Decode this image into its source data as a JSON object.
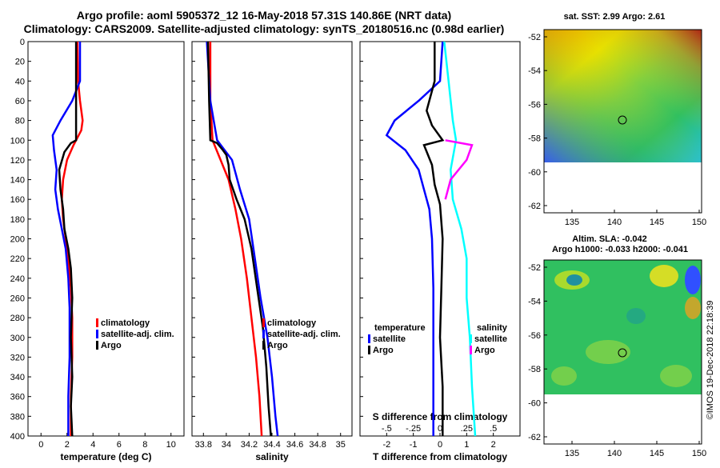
{
  "title": {
    "line1": "Argo profile: aoml 5905372_12 16-May-2018 57.31S 140.86E (NRT data)",
    "line2": "Climatology: CARS2009. Satellite-adjusted climatology: synTS_20180516.nc (0.98d earlier)"
  },
  "colors": {
    "climatology": "#ff0000",
    "satellite": "#0000ff",
    "argo": "#000000",
    "sat_salinity": "#00ffff",
    "argo_salinity": "#ff00ff"
  },
  "chart_data": [
    {
      "type": "line",
      "name": "temperature",
      "xlabel": "temperature (deg C)",
      "ylabel": "",
      "xlim": [
        -1,
        11
      ],
      "ylim": [
        0,
        400
      ],
      "xticks": [
        0,
        2,
        4,
        6,
        8,
        10
      ],
      "yticks": [
        0,
        20,
        40,
        60,
        80,
        100,
        120,
        140,
        160,
        180,
        200,
        220,
        240,
        260,
        280,
        300,
        320,
        340,
        360,
        380,
        400
      ],
      "legend": [
        "climatology",
        "satellite-adj. clim.",
        "Argo"
      ],
      "series": [
        {
          "name": "climatology",
          "color": "#ff0000",
          "points": [
            [
              2.8,
              0
            ],
            [
              2.85,
              40
            ],
            [
              3.0,
              60
            ],
            [
              3.2,
              80
            ],
            [
              3.1,
              90
            ],
            [
              2.5,
              105
            ],
            [
              2.0,
              120
            ],
            [
              1.7,
              140
            ],
            [
              1.6,
              160
            ],
            [
              1.7,
              180
            ],
            [
              1.9,
              200
            ],
            [
              2.1,
              220
            ],
            [
              2.3,
              250
            ],
            [
              2.4,
              280
            ],
            [
              2.4,
              320
            ],
            [
              2.3,
              360
            ],
            [
              2.3,
              400
            ]
          ]
        },
        {
          "name": "satellite-adj. clim.",
          "color": "#0000ff",
          "points": [
            [
              3.0,
              0
            ],
            [
              3.0,
              40
            ],
            [
              2.4,
              60
            ],
            [
              1.5,
              80
            ],
            [
              0.9,
              95
            ],
            [
              1.0,
              110
            ],
            [
              1.2,
              130
            ],
            [
              1.1,
              150
            ],
            [
              1.3,
              170
            ],
            [
              1.6,
              190
            ],
            [
              1.9,
              210
            ],
            [
              2.1,
              240
            ],
            [
              2.2,
              270
            ],
            [
              2.2,
              320
            ],
            [
              2.1,
              360
            ],
            [
              2.1,
              400
            ]
          ]
        },
        {
          "name": "Argo",
          "color": "#000000",
          "points": [
            [
              2.7,
              0
            ],
            [
              2.7,
              100
            ],
            [
              2.3,
              103
            ],
            [
              1.8,
              112
            ],
            [
              1.4,
              130
            ],
            [
              1.5,
              150
            ],
            [
              1.7,
              170
            ],
            [
              1.8,
              190
            ],
            [
              2.1,
              210
            ],
            [
              2.3,
              230
            ],
            [
              2.4,
              260
            ],
            [
              2.3,
              300
            ],
            [
              2.4,
              340
            ],
            [
              2.3,
              370
            ],
            [
              2.4,
              400
            ]
          ]
        }
      ]
    },
    {
      "type": "line",
      "name": "salinity",
      "xlabel": "salinity",
      "ylabel": "",
      "xlim": [
        33.7,
        35.1
      ],
      "ylim": [
        0,
        400
      ],
      "xticks": [
        33.8,
        34,
        34.2,
        34.4,
        34.6,
        34.8,
        35
      ],
      "legend": [
        "climatology",
        "satellite-adj. clim.",
        "Argo"
      ],
      "series": [
        {
          "name": "climatology",
          "color": "#ff0000",
          "points": [
            [
              33.86,
              0
            ],
            [
              33.86,
              60
            ],
            [
              33.88,
              100
            ],
            [
              33.95,
              120
            ],
            [
              34.02,
              140
            ],
            [
              34.08,
              170
            ],
            [
              34.13,
              200
            ],
            [
              34.18,
              240
            ],
            [
              34.22,
              280
            ],
            [
              34.26,
              320
            ],
            [
              34.29,
              360
            ],
            [
              34.31,
              400
            ]
          ]
        },
        {
          "name": "satellite-adj. clim.",
          "color": "#0000ff",
          "points": [
            [
              33.83,
              0
            ],
            [
              33.86,
              60
            ],
            [
              33.89,
              80
            ],
            [
              33.92,
              100
            ],
            [
              34.05,
              120
            ],
            [
              34.12,
              150
            ],
            [
              34.2,
              180
            ],
            [
              34.25,
              220
            ],
            [
              34.3,
              260
            ],
            [
              34.36,
              300
            ],
            [
              34.4,
              340
            ],
            [
              34.43,
              380
            ],
            [
              34.45,
              400
            ]
          ]
        },
        {
          "name": "Argo",
          "color": "#000000",
          "points": [
            [
              33.84,
              0
            ],
            [
              33.85,
              60
            ],
            [
              33.86,
              100
            ],
            [
              33.92,
              103
            ],
            [
              33.97,
              110
            ],
            [
              34.0,
              115
            ],
            [
              34.02,
              125
            ],
            [
              34.03,
              140
            ],
            [
              34.09,
              160
            ],
            [
              34.16,
              180
            ],
            [
              34.22,
              210
            ],
            [
              34.27,
              250
            ],
            [
              34.32,
              290
            ],
            [
              34.35,
              330
            ],
            [
              34.37,
              370
            ],
            [
              34.39,
              400
            ]
          ]
        }
      ]
    },
    {
      "type": "line",
      "name": "difference",
      "xlabel": "T difference from climatology",
      "xlabel_top": "S difference from climatology",
      "ylabel": "",
      "xlim": [
        -3,
        3
      ],
      "ylim": [
        0,
        400
      ],
      "xticks": [
        -2,
        -1,
        0,
        1,
        2
      ],
      "xticks_s": [
        -0.5,
        -0.25,
        0,
        0.25,
        0.5
      ],
      "legend_temperature": {
        "title": "temperature",
        "items": [
          "satellite",
          "Argo"
        ]
      },
      "legend_salinity": {
        "title": "salinity",
        "items": [
          "satellite",
          "Argo"
        ]
      },
      "series": [
        {
          "name": "temperature satellite",
          "color": "#0000ff",
          "points": [
            [
              0.1,
              0
            ],
            [
              0.0,
              40
            ],
            [
              -0.8,
              60
            ],
            [
              -1.7,
              80
            ],
            [
              -2.0,
              95
            ],
            [
              -1.3,
              110
            ],
            [
              -0.8,
              130
            ],
            [
              -0.6,
              150
            ],
            [
              -0.4,
              170
            ],
            [
              -0.3,
              200
            ],
            [
              -0.25,
              250
            ],
            [
              -0.25,
              300
            ],
            [
              -0.25,
              400
            ]
          ]
        },
        {
          "name": "temperature Argo",
          "color": "#000000",
          "points": [
            [
              -0.2,
              0
            ],
            [
              -0.2,
              40
            ],
            [
              -0.5,
              70
            ],
            [
              -0.3,
              85
            ],
            [
              0.1,
              100
            ],
            [
              -0.6,
              105
            ],
            [
              -0.3,
              125
            ],
            [
              -0.2,
              145
            ],
            [
              0.0,
              165
            ],
            [
              0.1,
              200
            ],
            [
              0.05,
              250
            ],
            [
              0.0,
              300
            ],
            [
              0.1,
              350
            ],
            [
              0.1,
              400
            ]
          ]
        },
        {
          "name": "salinity satellite",
          "color": "#00ffff",
          "points": [
            [
              0.04,
              0
            ],
            [
              0.08,
              40
            ],
            [
              0.12,
              80
            ],
            [
              0.15,
              100
            ],
            [
              0.1,
              130
            ],
            [
              0.12,
              160
            ],
            [
              0.2,
              190
            ],
            [
              0.25,
              220
            ],
            [
              0.25,
              260
            ],
            [
              0.28,
              300
            ],
            [
              0.3,
              350
            ],
            [
              0.33,
              400
            ]
          ]
        },
        {
          "name": "salinity Argo",
          "color": "#ff00ff",
          "points": [
            [
              0.05,
              100
            ],
            [
              0.3,
              105
            ],
            [
              0.25,
              120
            ],
            [
              0.1,
              140
            ],
            [
              0.05,
              160
            ]
          ]
        }
      ]
    }
  ],
  "maps": {
    "sst": {
      "title": "sat. SST: 2.99 Argo: 2.61",
      "yticks": [
        "-52",
        "-54",
        "-56",
        "-58",
        "-60",
        "-62"
      ],
      "xticks": [
        "135",
        "140",
        "145",
        "150"
      ]
    },
    "sla": {
      "title1": "Altim. SLA: -0.042",
      "title2": "Argo h1000: -0.033 h2000: -0.041",
      "yticks": [
        "-52",
        "-54",
        "-56",
        "-58",
        "-60",
        "-62"
      ],
      "xticks": [
        "135",
        "140",
        "145",
        "150"
      ]
    }
  },
  "footer": "©IMOS 19-Dec-2018 22:18:39"
}
